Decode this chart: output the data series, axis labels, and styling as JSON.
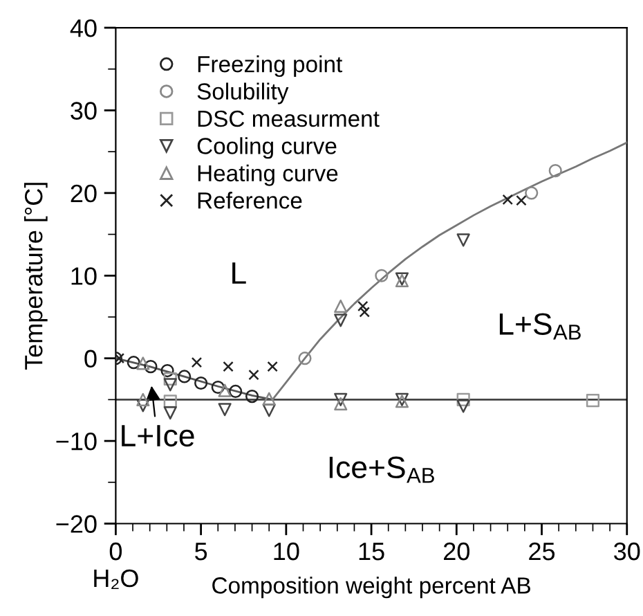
{
  "chart_data": {
    "type": "scatter",
    "xlabel": "Composition weight percent AB",
    "ylabel": "Temperature [°C]",
    "xlim": [
      0,
      30
    ],
    "ylim": [
      -20,
      40
    ],
    "xticks": [
      {
        "value": 0,
        "label": "0\nH₂O"
      },
      5,
      10,
      15,
      20,
      25,
      30
    ],
    "yticks": [
      -20,
      -10,
      0,
      10,
      20,
      30,
      40
    ],
    "grid": false,
    "legend": "top left",
    "series": [
      {
        "name": "Freezing point",
        "color": "#222222",
        "marker": "circle",
        "x": [
          0,
          1.05,
          2.05,
          3.03,
          4.03,
          5.0,
          6.0,
          7.03,
          8.0
        ],
        "values": [
          0,
          -0.5,
          -1.0,
          -1.5,
          -2.2,
          -3.0,
          -3.5,
          -4.0,
          -4.6
        ]
      },
      {
        "name": "Solubility",
        "color": "#888888",
        "marker": "circle",
        "x": [
          11.1,
          15.6,
          24.4,
          25.8
        ],
        "values": [
          0,
          10,
          20,
          22.7
        ]
      },
      {
        "name": "DSC measurment",
        "color": "#999999",
        "marker": "square",
        "x": [
          3.2,
          3.2,
          20.4,
          28.0
        ],
        "values": [
          -2.5,
          -5.2,
          -5.0,
          -5.1
        ]
      },
      {
        "name": "Cooling curve",
        "color": "#444444",
        "marker": "triangle_down",
        "x": [
          1.6,
          3.2,
          3.2,
          6.4,
          9.0,
          13.2,
          13.2,
          16.8,
          16.8,
          20.4,
          20.4
        ],
        "values": [
          -5.7,
          -6.6,
          -3.2,
          -6.2,
          -6.3,
          4.6,
          -5.0,
          9.6,
          -5.0,
          14.3,
          -5.8
        ]
      },
      {
        "name": "Heating curve",
        "color": "#888888",
        "marker": "triangle",
        "x": [
          1.6,
          1.6,
          6.4,
          9.0,
          13.2,
          13.2,
          16.8,
          16.8
        ],
        "values": [
          -5.0,
          -0.6,
          -3.9,
          -4.9,
          6.3,
          -5.5,
          9.4,
          -5.2
        ]
      },
      {
        "name": "Reference",
        "color": "#222222",
        "marker": "cross",
        "x": [
          0.2,
          4.75,
          6.6,
          8.1,
          9.2,
          14.5,
          14.6,
          23.0,
          23.8
        ],
        "values": [
          0,
          -0.5,
          -1.0,
          -2.0,
          -1.0,
          6.3,
          5.6,
          19.2,
          19.1
        ]
      },
      {
        "type": "line",
        "color": "#555555",
        "marker": "none",
        "x": [
          0,
          2,
          4,
          6,
          8,
          9.2
        ],
        "values": [
          0,
          -1,
          -2.2,
          -3.4,
          -4.5,
          -5
        ]
      },
      {
        "type": "line",
        "color": "#777777",
        "marker": "none",
        "x": [
          9.2,
          10,
          11.1,
          12,
          13,
          14,
          15,
          16,
          17,
          18,
          19,
          20,
          21,
          22,
          23,
          24,
          25,
          26,
          27,
          28,
          29,
          30
        ],
        "values": [
          -5,
          -2.9,
          0,
          2.3,
          4.5,
          6.6,
          8.5,
          10.3,
          12,
          13.5,
          14.9,
          16.1,
          17.3,
          18.4,
          19.4,
          20.4,
          21.4,
          22.3,
          23.2,
          24.2,
          25.1,
          26.1
        ]
      }
    ],
    "ref_lines": [
      {
        "axis": "y",
        "value": -5,
        "color": "#444444"
      }
    ],
    "annotations": [
      "L",
      "L+S$_{AB}$",
      "Ice+S$_{AB}$",
      "L+Ice"
    ]
  }
}
